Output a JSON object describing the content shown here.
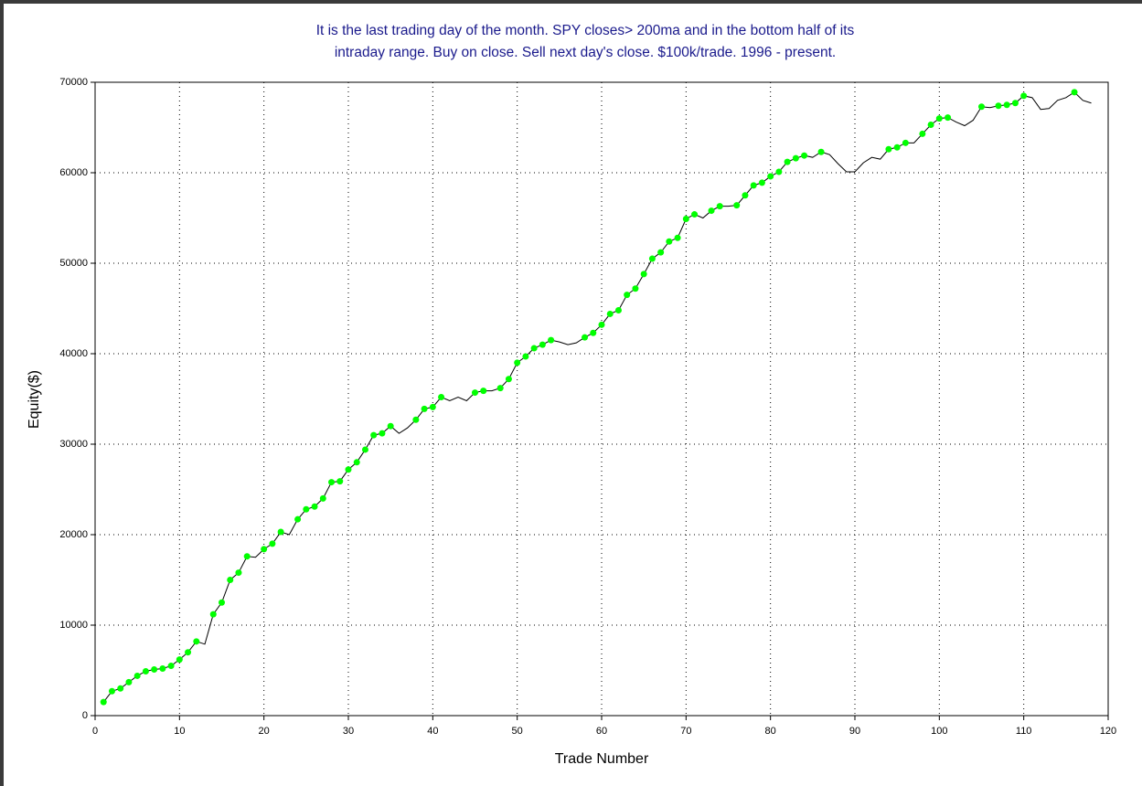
{
  "chart_data": {
    "type": "line",
    "title": [
      "It is the last trading day of the month. SPY closes> 200ma and in the bottom half of its",
      "intraday range. Buy on close. Sell next day's close. $100k/trade. 1996 - present."
    ],
    "x_label": "Trade Number",
    "y_label": "Equity($)",
    "x": [
      1,
      2,
      3,
      4,
      5,
      6,
      7,
      8,
      9,
      10,
      11,
      12,
      13,
      14,
      15,
      16,
      17,
      18,
      19,
      20,
      21,
      22,
      23,
      24,
      25,
      26,
      27,
      28,
      29,
      30,
      31,
      32,
      33,
      34,
      35,
      36,
      37,
      38,
      39,
      40,
      41,
      42,
      43,
      44,
      45,
      46,
      47,
      48,
      49,
      50,
      51,
      52,
      53,
      54,
      55,
      56,
      57,
      58,
      59,
      60,
      61,
      62,
      63,
      64,
      65,
      66,
      67,
      68,
      69,
      70,
      71,
      72,
      73,
      74,
      75,
      76,
      77,
      78,
      79,
      80,
      81,
      82,
      83,
      84,
      85,
      86,
      87,
      88,
      89,
      90,
      91,
      92,
      93,
      94,
      95,
      96,
      97,
      98,
      99,
      100,
      101,
      102,
      103,
      104,
      105,
      106,
      107,
      108,
      109,
      110,
      111,
      112,
      113,
      114,
      115,
      116,
      117,
      118
    ],
    "series": [
      {
        "name": "Equity",
        "color": "#000000",
        "marker_color": "#00ff00",
        "values": [
          1500,
          2700,
          3000,
          3700,
          4400,
          4900,
          5100,
          5200,
          5500,
          6200,
          7000,
          8200,
          7900,
          11200,
          12500,
          15000,
          15800,
          17600,
          17500,
          18400,
          19000,
          20300,
          20000,
          21700,
          22800,
          23100,
          24000,
          25800,
          25900,
          27200,
          28000,
          29400,
          31000,
          31200,
          32000,
          31200,
          31800,
          32700,
          33900,
          34100,
          35200,
          34800,
          35200,
          34800,
          35700,
          35900,
          35900,
          36200,
          37200,
          39000,
          39700,
          40600,
          41000,
          41500,
          41300,
          41000,
          41200,
          41800,
          42300,
          43200,
          44400,
          44800,
          46500,
          47200,
          48800,
          50500,
          51200,
          52400,
          52800,
          54900,
          55400,
          55000,
          55800,
          56300,
          56300,
          56400,
          57500,
          58600,
          58900,
          59600,
          60100,
          61200,
          61600,
          61900,
          61700,
          62300,
          62000,
          61000,
          60100,
          60100,
          61100,
          61700,
          61500,
          62600,
          62800,
          63300,
          63300,
          64300,
          65300,
          66000,
          66100,
          65600,
          65200,
          65800,
          67300,
          67200,
          67400,
          67500,
          67700,
          68500,
          68300,
          67000,
          67100,
          68000,
          68300,
          68900,
          68000,
          67700
        ]
      }
    ],
    "xlim": [
      0,
      120
    ],
    "xticks": [
      0,
      10,
      20,
      30,
      40,
      50,
      60,
      70,
      80,
      90,
      100,
      110,
      120
    ],
    "ylim": [
      0,
      70000
    ],
    "yticks": [
      0,
      10000,
      20000,
      30000,
      40000,
      50000,
      60000,
      70000
    ],
    "grid": true
  }
}
